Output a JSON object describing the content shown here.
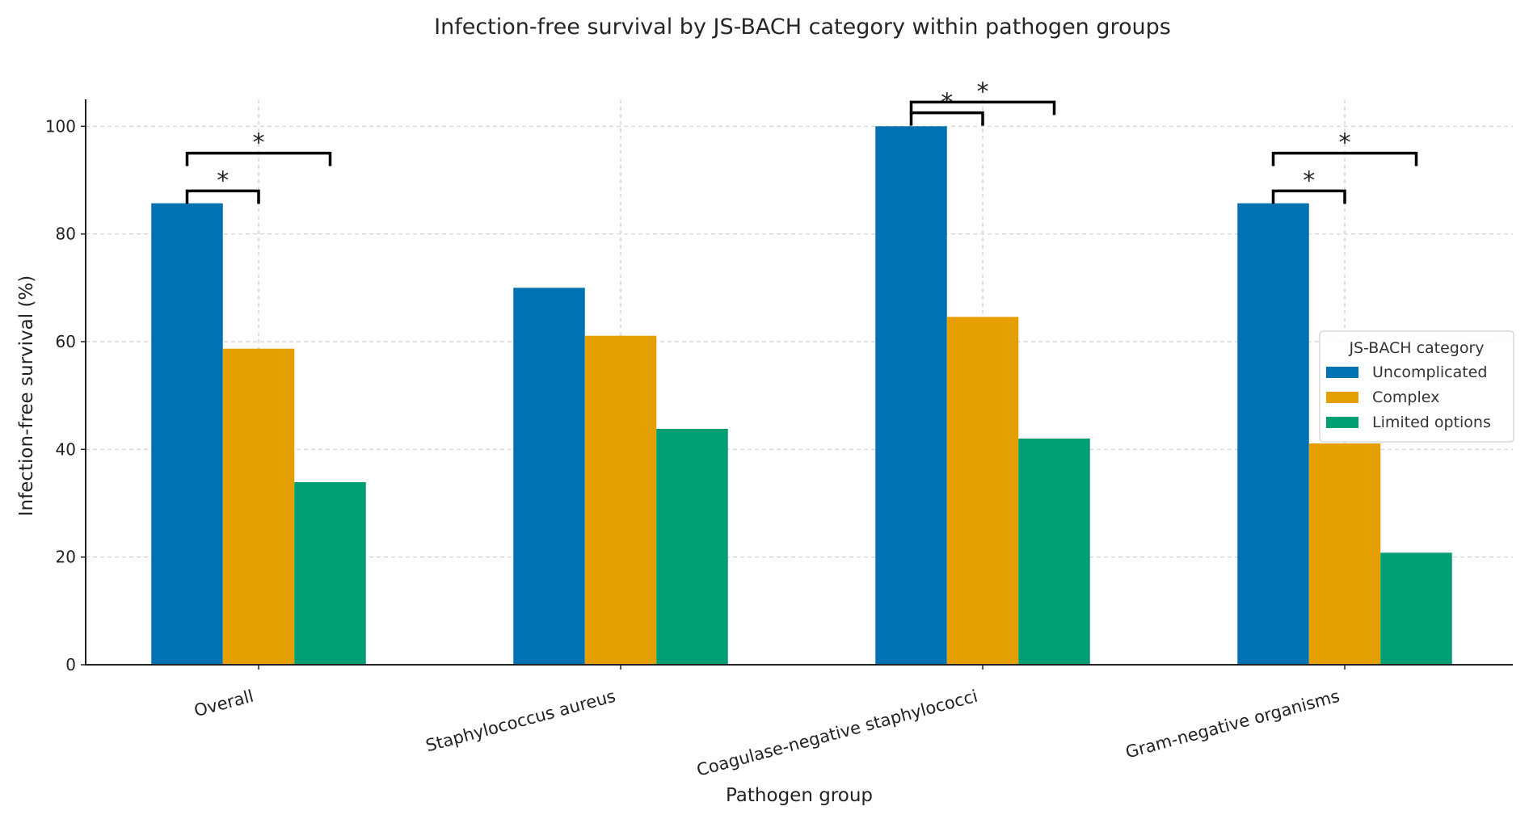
{
  "chart_data": {
    "type": "bar",
    "title": "Infection-free survival by JS-BACH category within pathogen groups",
    "xlabel": "Pathogen group",
    "ylabel": "Infection-free survival (%)",
    "ylim": [
      0,
      105
    ],
    "yticks": [
      0,
      20,
      40,
      60,
      80,
      100
    ],
    "grid": true,
    "categories": [
      "Overall",
      "Staphylococcus aureus",
      "Coagulase-negative staphylococci",
      "Gram-negative organisms"
    ],
    "series": [
      {
        "name": "Uncomplicated",
        "color": "#0072b2",
        "values": [
          85.7,
          70.0,
          100.0,
          85.7
        ]
      },
      {
        "name": "Complex",
        "color": "#e69f00",
        "values": [
          58.7,
          61.1,
          64.6,
          41.1
        ]
      },
      {
        "name": "Limited options",
        "color": "#009e73",
        "values": [
          33.9,
          43.8,
          42.0,
          20.8
        ]
      }
    ],
    "legend": {
      "title": "JS-BACH category",
      "placement": "center-right"
    },
    "significance": [
      {
        "category": "Overall",
        "from": "Uncomplicated",
        "to": "Complex",
        "y": 88,
        "label": "*"
      },
      {
        "category": "Overall",
        "from": "Uncomplicated",
        "to": "Limited options",
        "y": 95,
        "label": "*"
      },
      {
        "category": "Coagulase-negative staphylococci",
        "from": "Uncomplicated",
        "to": "Complex",
        "y": 102.5,
        "label": "*"
      },
      {
        "category": "Coagulase-negative staphylococci",
        "from": "Uncomplicated",
        "to": "Limited options",
        "y": 104.5,
        "label": "*"
      },
      {
        "category": "Gram-negative organisms",
        "from": "Uncomplicated",
        "to": "Complex",
        "y": 88,
        "label": "*"
      },
      {
        "category": "Gram-negative organisms",
        "from": "Uncomplicated",
        "to": "Limited options",
        "y": 95,
        "label": "*"
      }
    ]
  }
}
